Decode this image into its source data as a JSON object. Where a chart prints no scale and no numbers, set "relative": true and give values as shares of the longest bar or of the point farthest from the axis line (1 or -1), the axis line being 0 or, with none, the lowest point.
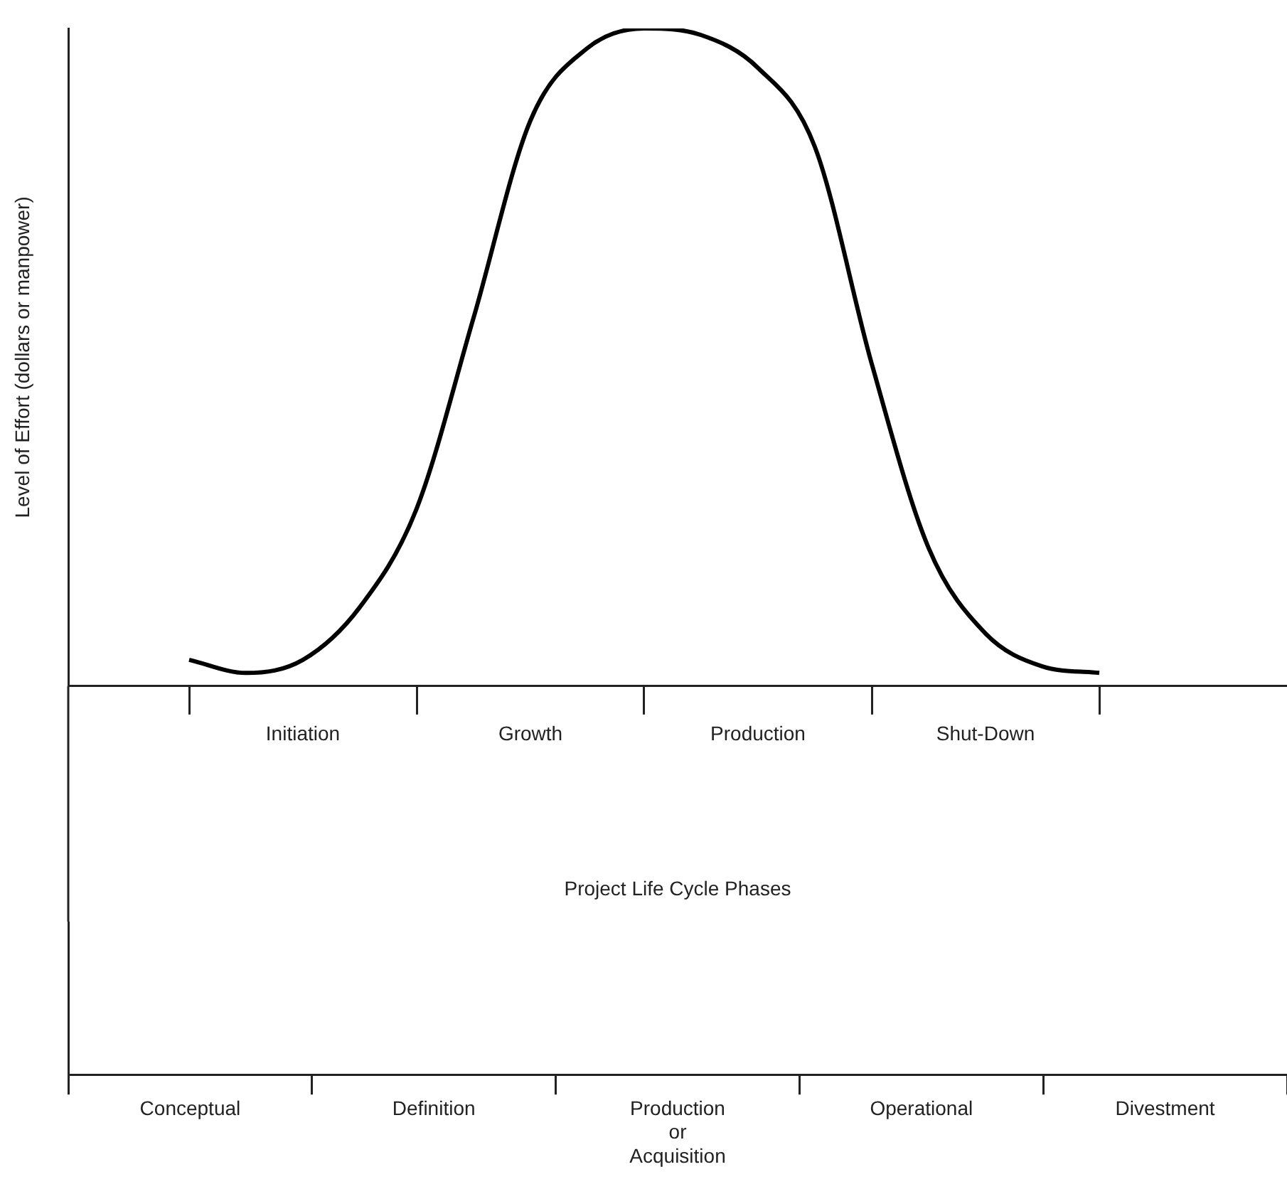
{
  "chart_data": [
    {
      "type": "line",
      "relative": true,
      "marker": "none",
      "ylabel": "Level of Effort (dollars or manpower)",
      "xlabel": "Project Life Cycle Phases",
      "categories": [
        null,
        null,
        "Initiation",
        null,
        null,
        null,
        "Growth",
        null,
        null,
        null,
        "Production",
        null,
        null,
        null,
        "Shut-Down",
        null,
        null
      ],
      "series": [
        {
          "color": "#000000",
          "values": [
            0.04,
            0.02,
            0.04,
            0.12,
            0.27,
            0.56,
            0.86,
            0.97,
            1.0,
            0.99,
            0.94,
            0.82,
            0.49,
            0.21,
            0.08,
            0.03,
            0.02
          ]
        }
      ]
    },
    {
      "type": "other",
      "categories": [
        "Conceptual",
        "Definition",
        "Production\nor\nAcquisition",
        "Operational",
        "Divestment"
      ]
    }
  ]
}
